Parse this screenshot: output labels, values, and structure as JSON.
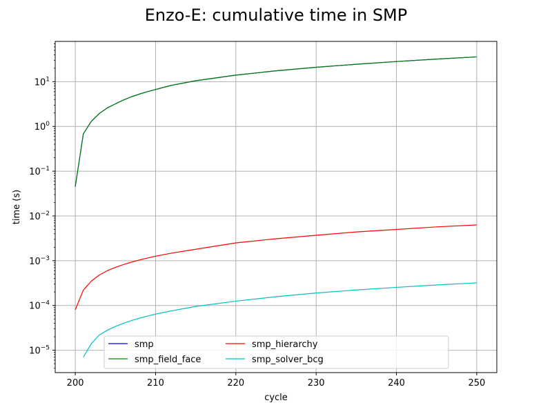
{
  "chart_data": {
    "type": "line",
    "title": "Enzo-E: cumulative time in SMP",
    "xlabel": "cycle",
    "ylabel": "time (s)",
    "yscale": "log",
    "xlim": [
      197.5,
      252.5
    ],
    "ylim_log10": [
      -5.5,
      1.9
    ],
    "xticks": [
      200,
      210,
      220,
      230,
      240,
      250
    ],
    "yticks": [
      {
        "exp": 1,
        "label_base": "10",
        "label_exp": "1"
      },
      {
        "exp": 0,
        "label_base": "10",
        "label_exp": "0"
      },
      {
        "exp": -1,
        "label_base": "10",
        "label_exp": "−1"
      },
      {
        "exp": -2,
        "label_base": "10",
        "label_exp": "−2"
      },
      {
        "exp": -3,
        "label_base": "10",
        "label_exp": "−3"
      },
      {
        "exp": -4,
        "label_base": "10",
        "label_exp": "−4"
      },
      {
        "exp": -5,
        "label_base": "10",
        "label_exp": "−5"
      }
    ],
    "grid": true,
    "legend": {
      "placement": "lower-center",
      "columns": 3
    },
    "series": [
      {
        "name": "smp",
        "color": "#0000ff",
        "x": [
          200,
          201,
          202,
          203,
          204,
          205,
          206,
          207,
          208,
          209,
          210,
          212,
          215,
          220,
          225,
          230,
          235,
          240,
          245,
          250
        ],
        "y": [
          0.045,
          0.68,
          1.3,
          1.95,
          2.6,
          3.2,
          3.9,
          4.6,
          5.3,
          6.0,
          6.7,
          8.3,
          10.5,
          14.0,
          17.5,
          21.0,
          24.5,
          28.2,
          32.0,
          35.8
        ]
      },
      {
        "name": "smp_field_face",
        "color": "#008000",
        "x": [
          200,
          201,
          202,
          203,
          204,
          205,
          206,
          207,
          208,
          209,
          210,
          212,
          215,
          220,
          225,
          230,
          235,
          240,
          245,
          250
        ],
        "y": [
          0.045,
          0.68,
          1.3,
          1.95,
          2.6,
          3.2,
          3.9,
          4.6,
          5.3,
          6.0,
          6.7,
          8.3,
          10.5,
          14.0,
          17.5,
          21.0,
          24.5,
          28.2,
          32.0,
          35.8
        ]
      },
      {
        "name": "smp_hierarchy",
        "color": "#ff0000",
        "x": [
          200,
          201,
          202,
          203,
          204,
          205,
          206,
          207,
          208,
          209,
          210,
          212,
          215,
          220,
          225,
          230,
          235,
          240,
          245,
          250
        ],
        "y": [
          8e-05,
          0.00022,
          0.00035,
          0.00048,
          0.0006,
          0.00071,
          0.00082,
          0.00093,
          0.00104,
          0.00115,
          0.00126,
          0.00148,
          0.0018,
          0.0025,
          0.0031,
          0.0037,
          0.0044,
          0.005,
          0.0057,
          0.0063
        ]
      },
      {
        "name": "smp_solver_bcg",
        "color": "#00bfbf",
        "x": [
          201,
          202,
          203,
          204,
          205,
          206,
          207,
          208,
          209,
          210,
          212,
          215,
          220,
          225,
          230,
          235,
          240,
          245,
          250
        ],
        "y": [
          7e-06,
          1.4e-05,
          2.2e-05,
          2.8e-05,
          3.4e-05,
          4e-05,
          4.6e-05,
          5.2e-05,
          5.8e-05,
          6.4e-05,
          7.6e-05,
          9.5e-05,
          0.000125,
          0.000157,
          0.00019,
          0.000222,
          0.000254,
          0.000287,
          0.00032
        ]
      }
    ]
  }
}
